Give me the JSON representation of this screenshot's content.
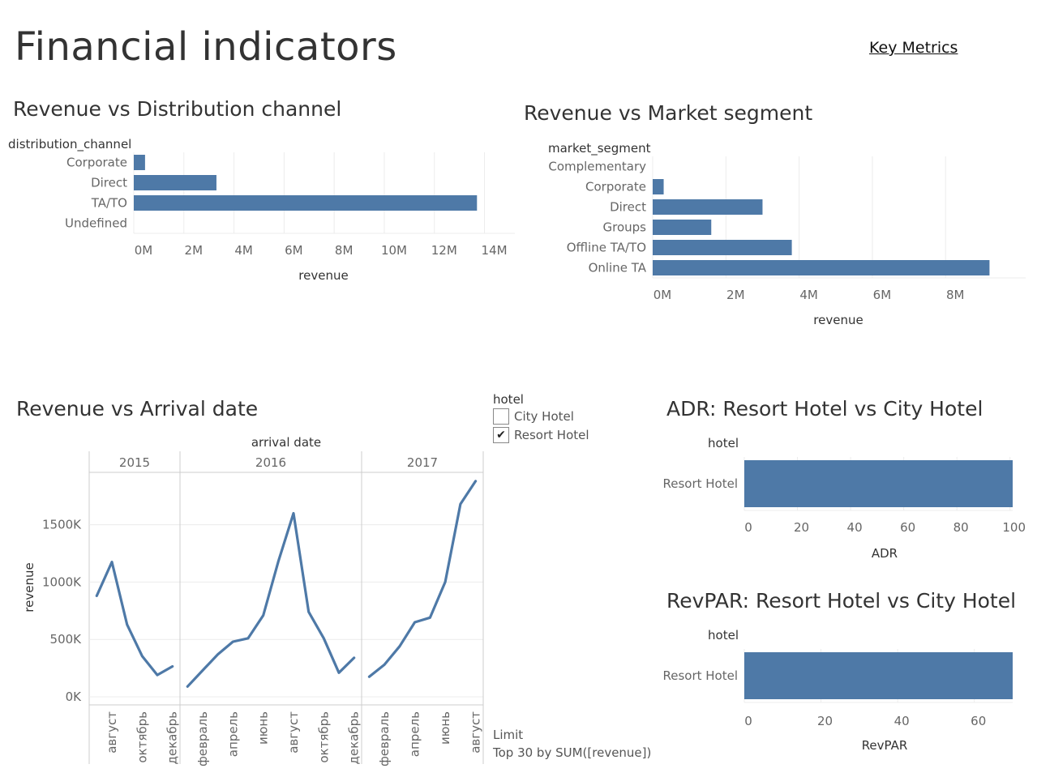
{
  "page": {
    "title": "Financial indicators",
    "key_metrics_link": "Key Metrics"
  },
  "legend": {
    "title": "hotel",
    "items": [
      {
        "label": "City Hotel",
        "checked": false
      },
      {
        "label": "Resort Hotel",
        "checked": true
      }
    ],
    "check_glyph": "✔"
  },
  "limit": {
    "label": "Limit",
    "value": "Top 30 by SUM([revenue])"
  },
  "colors": {
    "bar": "#4e79a7",
    "grid": "#ececec",
    "axis_text": "#666",
    "label_text": "#333"
  },
  "chart_data": [
    {
      "id": "distribution",
      "type": "bar",
      "orientation": "horizontal",
      "title": "Revenue vs Distribution channel",
      "category_label": "distribution_channel",
      "xlabel": "revenue",
      "categories": [
        "Corporate",
        "Direct",
        "TA/TO",
        "Undefined"
      ],
      "values": [
        0.45,
        3.3,
        13.7,
        0
      ],
      "xlim": [
        0,
        14.5
      ],
      "ticks": [
        0,
        2,
        4,
        6,
        8,
        10,
        12,
        14
      ],
      "tick_labels": [
        "0M",
        "2M",
        "4M",
        "6M",
        "8M",
        "10M",
        "12M",
        "14M"
      ]
    },
    {
      "id": "market",
      "type": "bar",
      "orientation": "horizontal",
      "title": "Revenue vs Market segment",
      "category_label": "market_segment",
      "xlabel": "revenue",
      "categories": [
        "Complementary",
        "Corporate",
        "Direct",
        "Groups",
        "Offline TA/TO",
        "Online TA"
      ],
      "values": [
        0,
        0.3,
        3.0,
        1.6,
        3.8,
        9.2
      ],
      "xlim": [
        0,
        9.7
      ],
      "ticks": [
        0,
        2,
        4,
        6,
        8
      ],
      "tick_labels": [
        "0M",
        "2M",
        "4M",
        "6M",
        "8M"
      ]
    },
    {
      "id": "arrival",
      "type": "line",
      "title": "Revenue vs Arrival date",
      "xlabel": "arrival date",
      "ylabel": "revenue",
      "ylim": [
        0,
        1900
      ],
      "yticks": [
        0,
        500,
        1000,
        1500
      ],
      "ytick_labels": [
        "0K",
        "500K",
        "1000K",
        "1500K"
      ],
      "panels": [
        {
          "year": "2015",
          "months": 6,
          "values": [
            880,
            1175,
            630,
            355,
            190,
            265
          ],
          "tick_positions": [
            1,
            3,
            5
          ],
          "tick_labels": [
            "август",
            "октябрь",
            "декабрь"
          ]
        },
        {
          "year": "2016",
          "months": 12,
          "values": [
            90,
            230,
            370,
            480,
            510,
            710,
            1180,
            1600,
            740,
            510,
            210,
            340
          ],
          "tick_positions": [
            1,
            3,
            5,
            7,
            9,
            11
          ],
          "tick_labels": [
            "февраль",
            "апрель",
            "июнь",
            "август",
            "октябрь",
            "декабрь"
          ]
        },
        {
          "year": "2017",
          "months": 8,
          "values": [
            175,
            280,
            440,
            650,
            690,
            1000,
            1680,
            1880
          ],
          "tick_positions": [
            1,
            3,
            5,
            7
          ],
          "tick_labels": [
            "февраль",
            "апрель",
            "июнь",
            "август"
          ]
        }
      ]
    },
    {
      "id": "adr",
      "type": "bar",
      "orientation": "horizontal",
      "title": "ADR: Resort Hotel vs City Hotel",
      "category_label": "hotel",
      "xlabel": "ADR",
      "categories": [
        "Resort Hotel"
      ],
      "values": [
        101
      ],
      "xlim": [
        0,
        101
      ],
      "ticks": [
        0,
        20,
        40,
        60,
        80,
        100
      ],
      "tick_labels": [
        "0",
        "20",
        "40",
        "60",
        "80",
        "100"
      ]
    },
    {
      "id": "revpar",
      "type": "bar",
      "orientation": "horizontal",
      "title": "RevPAR: Resort Hotel vs City Hotel",
      "category_label": "hotel",
      "xlabel": "RevPAR",
      "categories": [
        "Resort Hotel"
      ],
      "values": [
        70
      ],
      "xlim": [
        0,
        70
      ],
      "ticks": [
        0,
        20,
        40,
        60
      ],
      "tick_labels": [
        "0",
        "20",
        "40",
        "60"
      ]
    }
  ]
}
